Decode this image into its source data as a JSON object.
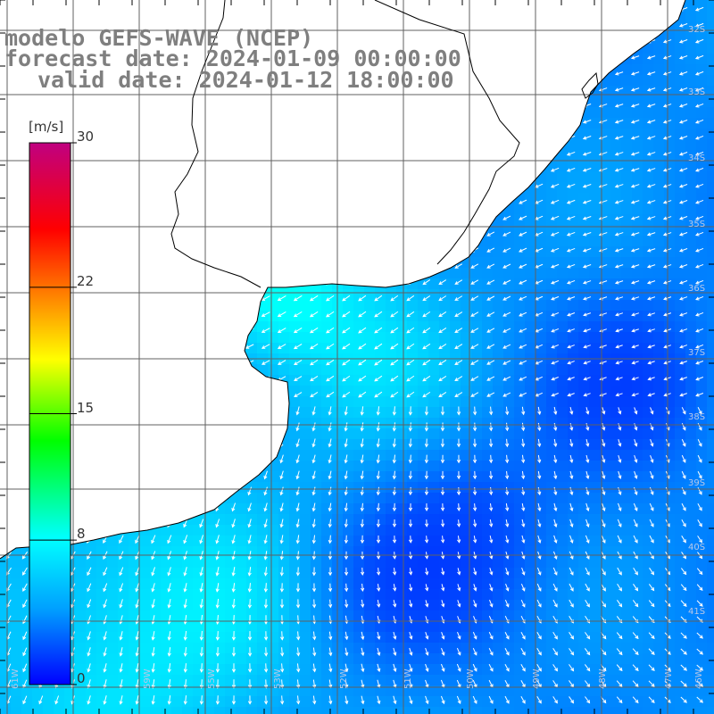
{
  "title": {
    "line1": "modelo GEFS-WAVE (NCEP)",
    "line2": "forecast date: 2024-01-09 00:00:00",
    "line3": "valid date: 2024-01-12 18:00:00"
  },
  "colorbar": {
    "unit": "[m/s]",
    "min": 0,
    "max": 30,
    "ticks": [
      {
        "value": 30,
        "label": "30"
      },
      {
        "value": 22,
        "label": "22"
      },
      {
        "value": 15,
        "label": "15"
      },
      {
        "value": 8,
        "label": "8"
      },
      {
        "value": 0,
        "label": "0"
      }
    ],
    "colors": [
      "#0000ff",
      "#00a0ff",
      "#00ffff",
      "#00ff00",
      "#ffff00",
      "#ff8000",
      "#ff0000",
      "#c00080"
    ]
  },
  "map": {
    "lon_labels": [
      "61W",
      "59W",
      "55W",
      "53W",
      "52W",
      "51W",
      "50W",
      "49W",
      "48W",
      "47W",
      "46W"
    ],
    "lat_labels": [
      "32S",
      "33S",
      "34S",
      "35S",
      "36S",
      "37S",
      "38S",
      "39S",
      "40S",
      "41S"
    ],
    "ocean_color": "#1f9fff",
    "land_color": "#ffffff",
    "coast_color": "#000000",
    "grid_color": "#606060",
    "arrow_color": "#ffffff"
  }
}
